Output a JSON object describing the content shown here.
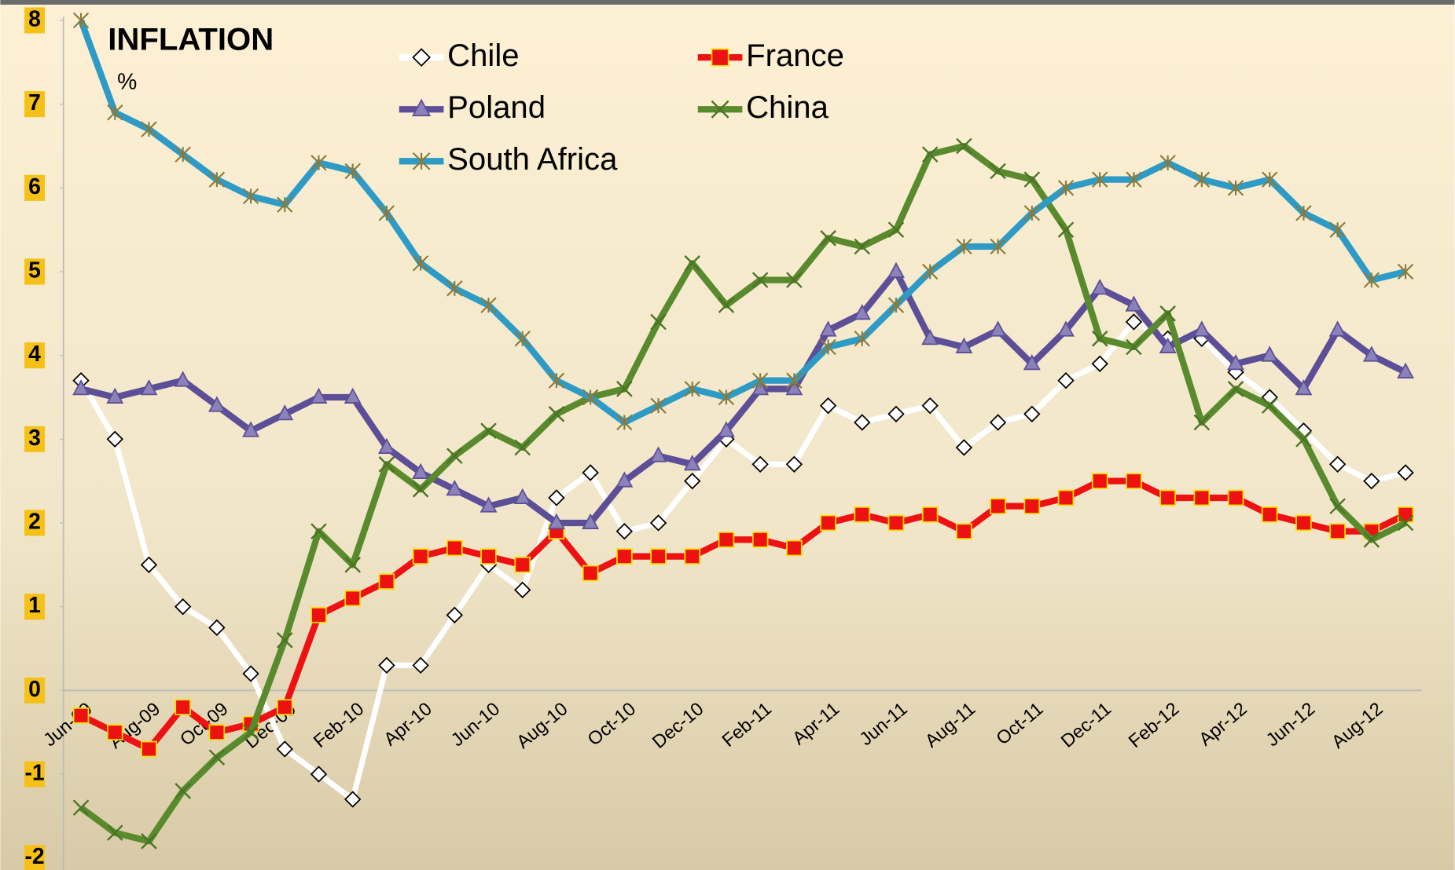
{
  "chart_data": {
    "type": "line",
    "title": "INFLATION",
    "subtitle": "%",
    "categories": [
      "Jun-09",
      null,
      "Aug-09",
      null,
      "Oct-09",
      null,
      "Dec-09",
      null,
      "Feb-10",
      null,
      "Apr-10",
      null,
      "Jun-10",
      null,
      "Aug-10",
      null,
      "Oct-10",
      null,
      "Dec-10",
      null,
      "Feb-11",
      null,
      "Apr-11",
      null,
      "Jun-11",
      null,
      "Aug-11",
      null,
      "Oct-11",
      null,
      "Dec-11",
      null,
      "Feb-12",
      null,
      "Apr-12",
      null,
      "Jun-12",
      null,
      "Aug-12",
      null
    ],
    "series": [
      {
        "name": "Chile",
        "color": "#ffffff",
        "marker": "diamond",
        "values": [
          3.7,
          3.0,
          1.5,
          1.0,
          0.75,
          0.2,
          -0.7,
          -1.0,
          -1.3,
          0.3,
          0.3,
          0.9,
          1.5,
          1.2,
          2.3,
          2.6,
          1.9,
          2.0,
          2.5,
          3.0,
          2.7,
          2.7,
          3.4,
          3.2,
          3.3,
          3.4,
          2.9,
          3.2,
          3.3,
          3.7,
          3.9,
          4.4,
          4.2,
          4.2,
          3.8,
          3.5,
          3.1,
          2.7,
          2.5,
          2.6
        ]
      },
      {
        "name": "France",
        "color": "#ee1111",
        "marker": "square",
        "values": [
          -0.3,
          -0.5,
          -0.7,
          -0.2,
          -0.5,
          -0.4,
          -0.2,
          0.9,
          1.1,
          1.3,
          1.6,
          1.7,
          1.6,
          1.5,
          1.9,
          1.4,
          1.6,
          1.6,
          1.6,
          1.8,
          1.8,
          1.7,
          2.0,
          2.1,
          2.0,
          2.1,
          1.9,
          2.2,
          2.2,
          2.3,
          2.5,
          2.5,
          2.3,
          2.3,
          2.3,
          2.1,
          2.0,
          1.9,
          1.9,
          2.1
        ]
      },
      {
        "name": "Poland",
        "color": "#5c4f97",
        "marker": "triangle",
        "values": [
          3.6,
          3.5,
          3.6,
          3.7,
          3.4,
          3.1,
          3.3,
          3.5,
          3.5,
          2.9,
          2.6,
          2.4,
          2.2,
          2.3,
          2.0,
          2.0,
          2.5,
          2.8,
          2.7,
          3.1,
          3.6,
          3.6,
          4.3,
          4.5,
          5.0,
          4.2,
          4.1,
          4.3,
          3.9,
          4.3,
          4.8,
          4.6,
          4.1,
          4.3,
          3.9,
          4.0,
          3.6,
          4.3,
          4.0,
          3.8
        ]
      },
      {
        "name": "China",
        "color": "#5a8a2e",
        "marker": "x",
        "values": [
          -1.4,
          -1.7,
          -1.8,
          -1.2,
          -0.8,
          -0.5,
          0.6,
          1.9,
          1.5,
          2.7,
          2.4,
          2.8,
          3.1,
          2.9,
          3.3,
          3.5,
          3.6,
          4.4,
          5.1,
          4.6,
          4.9,
          4.9,
          5.4,
          5.3,
          5.5,
          6.4,
          6.5,
          6.2,
          6.1,
          5.5,
          4.2,
          4.1,
          4.5,
          3.2,
          3.6,
          3.4,
          3.0,
          2.2,
          1.8,
          2.0
        ]
      },
      {
        "name": "South Africa",
        "color": "#2e9bc6",
        "marker": "star",
        "values": [
          8.0,
          6.9,
          6.7,
          6.4,
          6.1,
          5.9,
          5.8,
          6.3,
          6.2,
          5.7,
          5.1,
          4.8,
          4.6,
          4.2,
          3.7,
          3.5,
          3.2,
          3.4,
          3.6,
          3.5,
          3.7,
          3.7,
          4.1,
          4.2,
          4.6,
          5.0,
          5.3,
          5.3,
          5.7,
          6.0,
          6.1,
          6.1,
          6.3,
          6.1,
          6.0,
          6.1,
          5.7,
          5.5,
          4.9,
          5.0
        ]
      }
    ],
    "ylim": [
      -2,
      8
    ],
    "yticks": [
      -2,
      -1,
      0,
      1,
      2,
      3,
      4,
      5,
      6,
      7,
      8
    ]
  }
}
